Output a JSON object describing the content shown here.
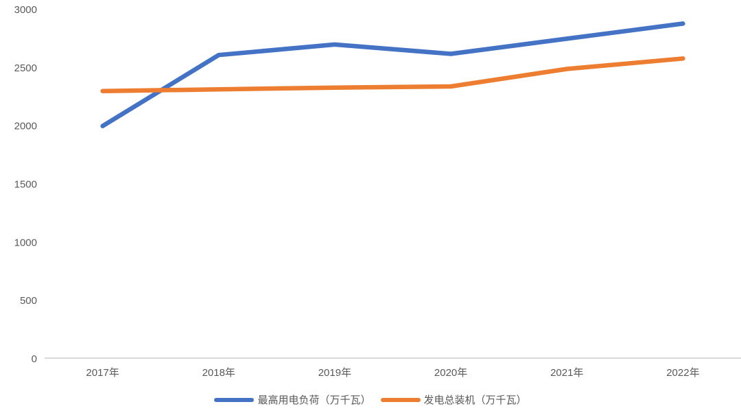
{
  "chart_data": {
    "type": "line",
    "categories": [
      "2017年",
      "2018年",
      "2019年",
      "2020年",
      "2021年",
      "2022年"
    ],
    "series": [
      {
        "name": "最高用电负荷（万千瓦）",
        "color": "#4472C4",
        "values": [
          2000,
          2610,
          2700,
          2620,
          2750,
          2880
        ]
      },
      {
        "name": "发电总装机（万千瓦）",
        "color": "#ED7D31",
        "values": [
          2300,
          2315,
          2330,
          2340,
          2490,
          2580
        ]
      }
    ],
    "title": "",
    "xlabel": "",
    "ylabel": "",
    "ylim": [
      0,
      3000
    ],
    "yticks": [
      0,
      500,
      1000,
      1500,
      2000,
      2500,
      3000
    ],
    "grid": false,
    "legend_position": "bottom",
    "axis_text_color": "#595959",
    "axis_line_color": "#D9D9D9"
  }
}
